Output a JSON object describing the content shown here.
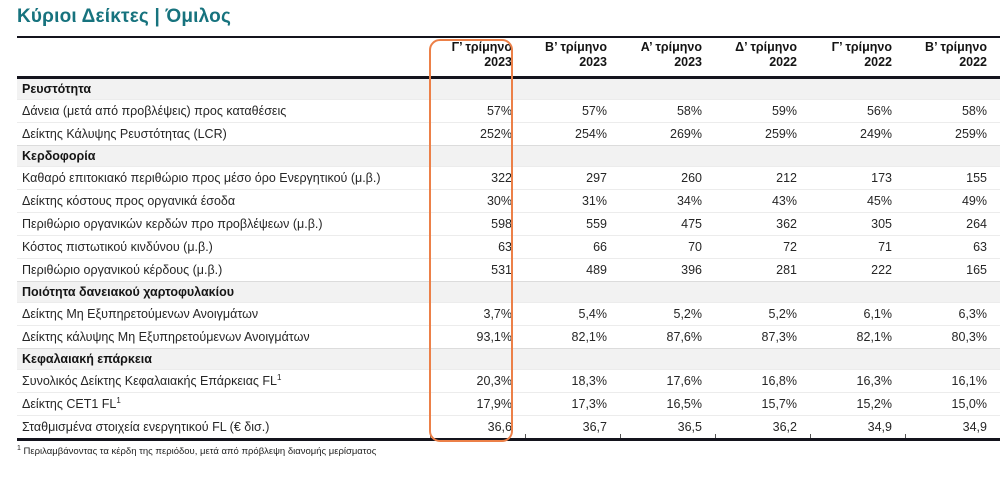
{
  "page": {
    "title": "Κύριοι Δείκτες | Όμιλος"
  },
  "colors": {
    "title_teal": "#17737E",
    "rule_dark": "#14141d",
    "section_bg": "#f2f2f2",
    "highlight_orange": "#EC8048"
  },
  "table": {
    "columns": [
      {
        "period": "Γ’ τρίμηνο",
        "year": "2023"
      },
      {
        "period": "Β’ τρίμηνο",
        "year": "2023"
      },
      {
        "period": "Α’ τρίμηνο",
        "year": "2023"
      },
      {
        "period": "Δ’ τρίμηνο",
        "year": "2022"
      },
      {
        "period": "Γ’ τρίμηνο",
        "year": "2022"
      },
      {
        "period": "Β’ τρίμηνο",
        "year": "2022"
      }
    ],
    "highlight": {
      "column": "Γ’ τρίμηνο 2023",
      "column_index": 0,
      "color": "#EC8048"
    },
    "sections": [
      {
        "title": "Ρευστότητα",
        "rows": [
          {
            "label": "Δάνεια (μετά από προβλέψεις) προς καταθέσεις",
            "values": [
              "57%",
              "57%",
              "58%",
              "59%",
              "56%",
              "58%"
            ]
          },
          {
            "label": "Δείκτης Κάλυψης Ρευστότητας (LCR)",
            "values": [
              "252%",
              "254%",
              "269%",
              "259%",
              "249%",
              "259%"
            ]
          }
        ]
      },
      {
        "title": "Κερδοφορία",
        "rows": [
          {
            "label": "Καθαρό επιτοκιακό περιθώριο προς μέσο όρο Ενεργητικού (μ.β.)",
            "values": [
              "322",
              "297",
              "260",
              "212",
              "173",
              "155"
            ]
          },
          {
            "label": "Δείκτης κόστους προς οργανικά έσοδα",
            "values": [
              "30%",
              "31%",
              "34%",
              "43%",
              "45%",
              "49%"
            ]
          },
          {
            "label": "Περιθώριο οργανικών κερδών προ προβλέψεων (μ.β.)",
            "values": [
              "598",
              "559",
              "475",
              "362",
              "305",
              "264"
            ]
          },
          {
            "label": "Κόστος πιστωτικού κινδύνου (μ.β.)",
            "values": [
              "63",
              "66",
              "70",
              "72",
              "71",
              "63"
            ]
          },
          {
            "label": "Περιθώριο οργανικού κέρδους (μ.β.)",
            "values": [
              "531",
              "489",
              "396",
              "281",
              "222",
              "165"
            ]
          }
        ]
      },
      {
        "title": "Ποιότητα δανειακού χαρτοφυλακίου",
        "rows": [
          {
            "label": "Δείκτης Μη Εξυπηρετούμενων Ανοιγμάτων",
            "values": [
              "3,7%",
              "5,4%",
              "5,2%",
              "5,2%",
              "6,1%",
              "6,3%"
            ]
          },
          {
            "label": "Δείκτης κάλυψης Μη Εξυπηρετούμενων Ανοιγμάτων",
            "values": [
              "93,1%",
              "82,1%",
              "87,6%",
              "87,3%",
              "82,1%",
              "80,3%"
            ]
          }
        ]
      },
      {
        "title": "Κεφαλαιακή επάρκεια",
        "rows": [
          {
            "label": "Συνολικός Δείκτης Κεφαλαιακής Επάρκειας FL",
            "sup": "1",
            "values": [
              "20,3%",
              "18,3%",
              "17,6%",
              "16,8%",
              "16,3%",
              "16,1%"
            ]
          },
          {
            "label": "Δείκτης CET1 FL",
            "sup": "1",
            "values": [
              "17,9%",
              "17,3%",
              "16,5%",
              "15,7%",
              "15,2%",
              "15,0%"
            ]
          },
          {
            "label": "Σταθμισμένα στοιχεία ενεργητικού FL (€ δισ.)",
            "values": [
              "36,6",
              "36,7",
              "36,5",
              "36,2",
              "34,9",
              "34,9"
            ]
          }
        ]
      }
    ]
  },
  "footnote": {
    "marker": "1",
    "text": "Περιλαμβάνοντας τα κέρδη της περιόδου, μετά από πρόβλεψη διανομής μερίσματος"
  }
}
